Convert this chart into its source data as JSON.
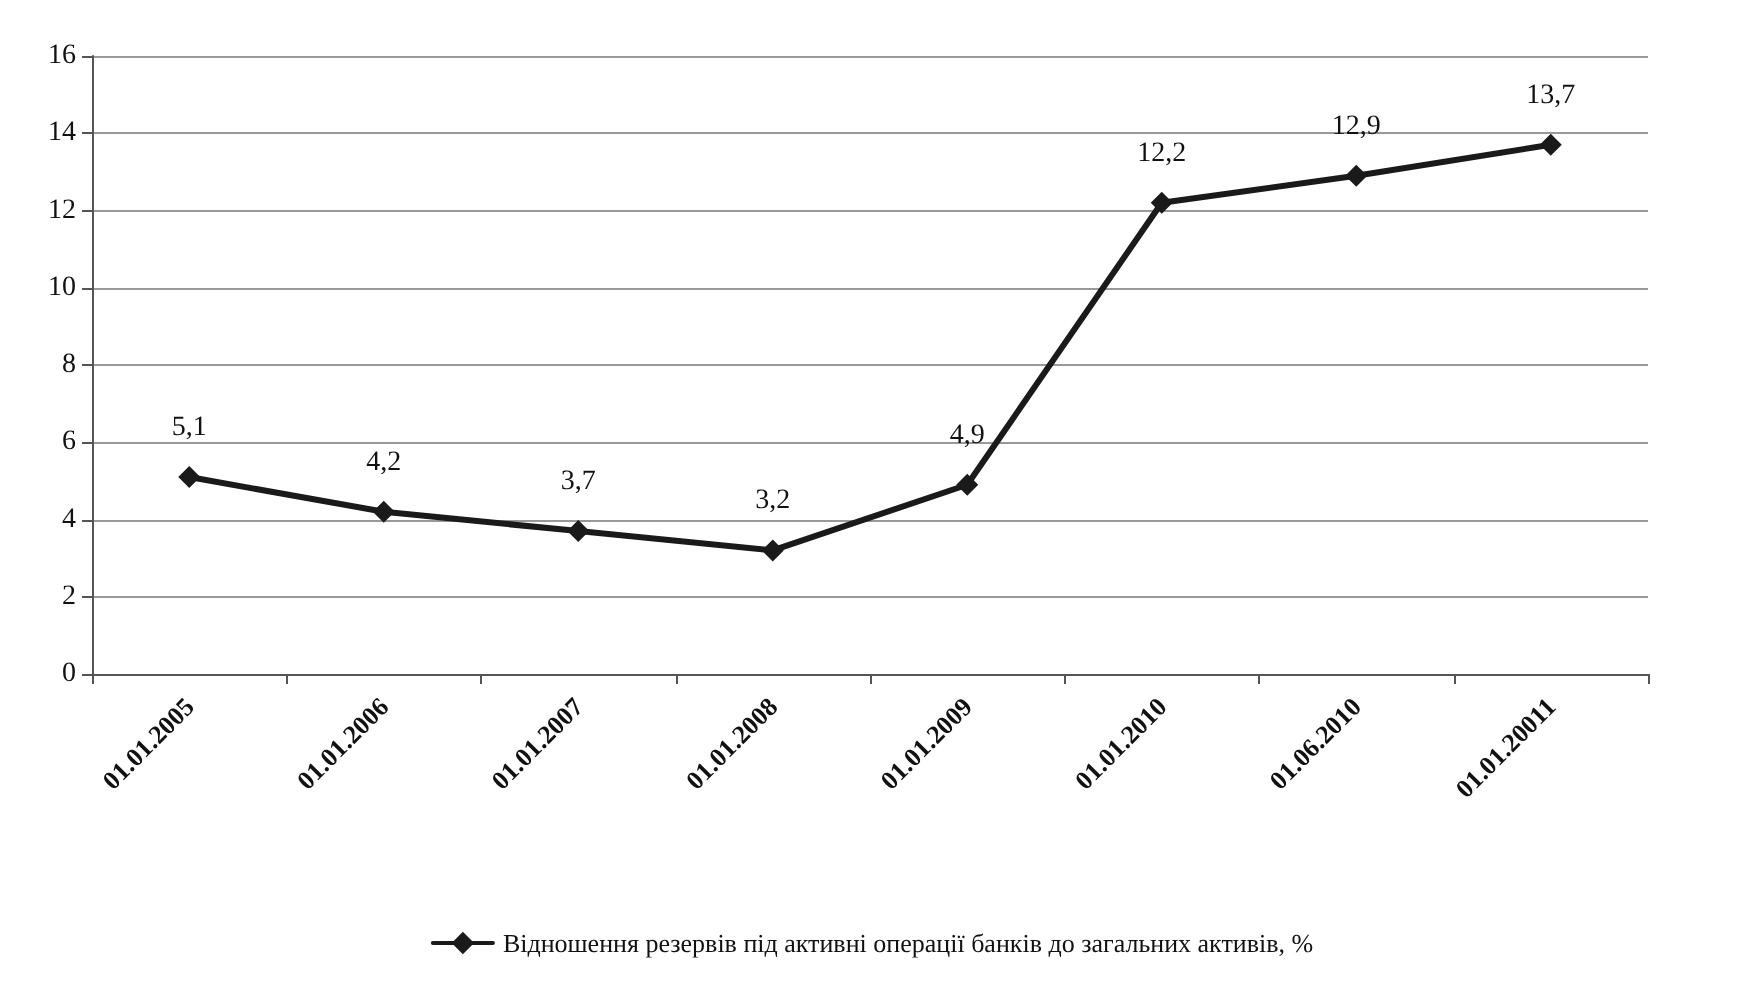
{
  "chart_data": {
    "type": "line",
    "categories": [
      "01.01.2005",
      "01.01.2006",
      "01.01.2007",
      "01.01.2008",
      "01.01.2009",
      "01.01.2010",
      "01.06.2010",
      "01.01.20011"
    ],
    "series": [
      {
        "name": "Відношення резервів під активні операції банків до загальних активів, %",
        "color": "#1a1a1a",
        "values": [
          5.1,
          4.2,
          3.7,
          3.2,
          4.9,
          12.2,
          12.9,
          13.7
        ],
        "value_labels": [
          "5,1",
          "4,2",
          "3,7",
          "3,2",
          "4,9",
          "12,2",
          "12,9",
          "13,7"
        ]
      }
    ],
    "ylim": [
      0,
      16
    ],
    "yticks": [
      0,
      2,
      4,
      6,
      8,
      10,
      12,
      14,
      16
    ],
    "grid": "y",
    "legend": "bottom",
    "marker": "diamond",
    "line_style": "solid"
  }
}
